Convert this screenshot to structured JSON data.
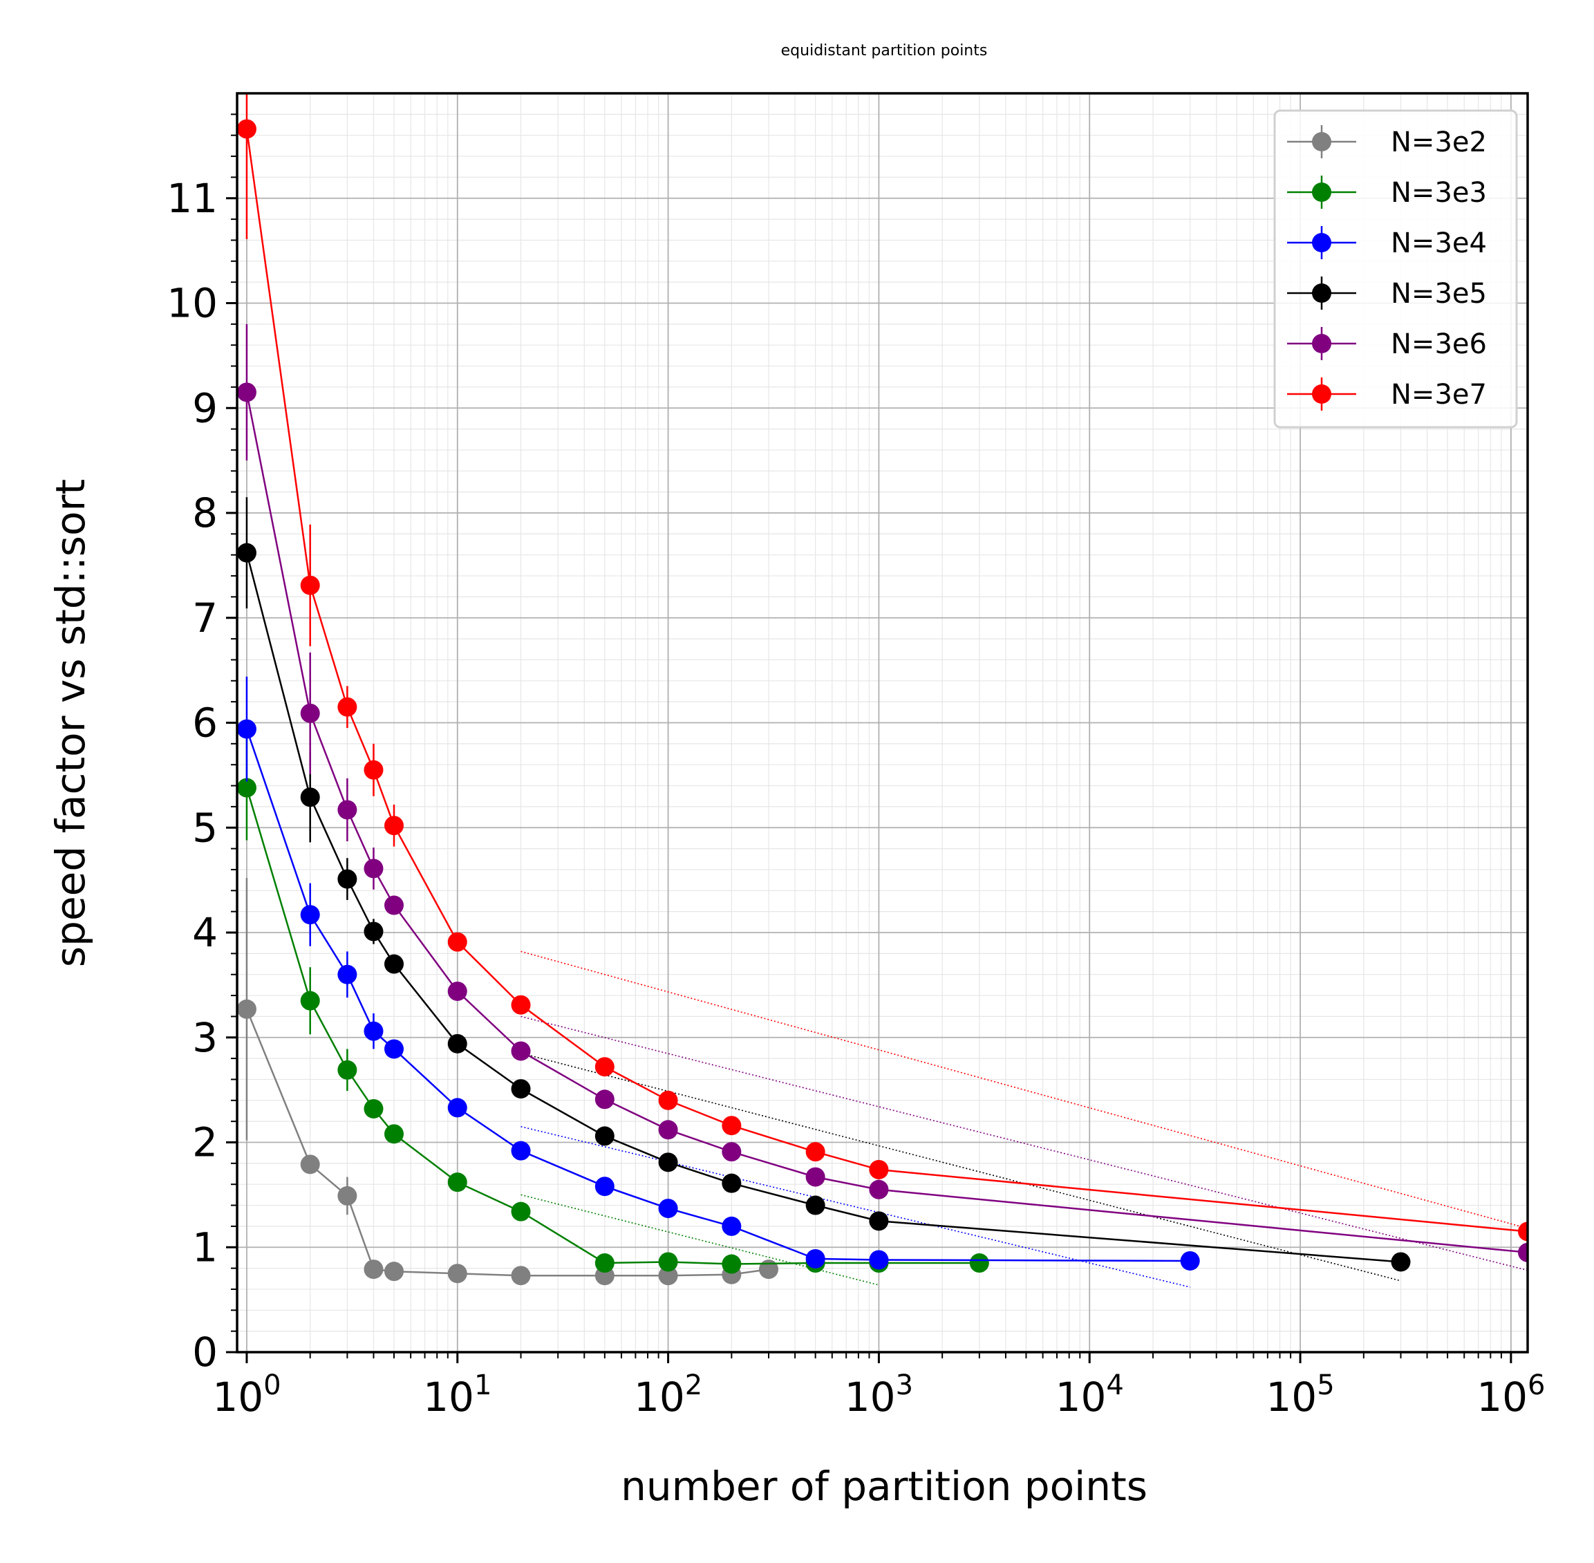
{
  "chart_data": {
    "type": "line",
    "title": "equidistant partition points",
    "xlabel": "number of partition points",
    "ylabel": "speed factor vs std::sort",
    "xscale": "log",
    "xlim": [
      0.9,
      1200000
    ],
    "ylim": [
      0,
      12
    ],
    "x_ticks": [
      1,
      10,
      100,
      1000,
      10000,
      100000,
      1000000
    ],
    "x_tick_labels": [
      {
        "base": "10",
        "exp": "0"
      },
      {
        "base": "10",
        "exp": "1"
      },
      {
        "base": "10",
        "exp": "2"
      },
      {
        "base": "10",
        "exp": "3"
      },
      {
        "base": "10",
        "exp": "4"
      },
      {
        "base": "10",
        "exp": "5"
      },
      {
        "base": "10",
        "exp": "6"
      }
    ],
    "y_ticks": [
      0,
      1,
      2,
      3,
      4,
      5,
      6,
      7,
      8,
      9,
      10,
      11
    ],
    "y_tick_labels": [
      "0",
      "1",
      "2",
      "3",
      "4",
      "5",
      "6",
      "7",
      "8",
      "9",
      "10",
      "11"
    ],
    "grid": true,
    "legend_position": "top-right",
    "series": [
      {
        "name": "N=3e2",
        "color": "#808080",
        "x": [
          1,
          2,
          3,
          4,
          5,
          10,
          20,
          50,
          100,
          200,
          300
        ],
        "y": [
          3.27,
          1.79,
          1.49,
          0.79,
          0.77,
          0.75,
          0.73,
          0.73,
          0.73,
          0.74,
          0.79
        ],
        "err": [
          1.25,
          0.05,
          0.18,
          0.03,
          0.03,
          0.02,
          0.02,
          0.02,
          0.02,
          0.02,
          0.02
        ],
        "fit": null
      },
      {
        "name": "N=3e3",
        "color": "#008000",
        "x": [
          1,
          2,
          3,
          4,
          5,
          10,
          20,
          50,
          100,
          200,
          500,
          1000,
          3000
        ],
        "y": [
          5.38,
          3.35,
          2.69,
          2.32,
          2.08,
          1.62,
          1.34,
          0.85,
          0.86,
          0.84,
          0.85,
          0.85,
          0.85
        ],
        "err": [
          0.5,
          0.32,
          0.2,
          0.05,
          0.05,
          0.05,
          0.04,
          0.02,
          0.02,
          0.02,
          0.02,
          0.02,
          0.02
        ],
        "fit": {
          "x0": 20,
          "x1": 1000,
          "y0": 1.5,
          "y1": 0.64
        }
      },
      {
        "name": "N=3e4",
        "color": "#0000ff",
        "x": [
          1,
          2,
          3,
          4,
          5,
          10,
          20,
          50,
          100,
          200,
          500,
          1000,
          30000
        ],
        "y": [
          5.94,
          4.17,
          3.6,
          3.06,
          2.89,
          2.33,
          1.92,
          1.58,
          1.37,
          1.2,
          0.89,
          0.88,
          0.87
        ],
        "err": [
          0.5,
          0.3,
          0.22,
          0.17,
          0.05,
          0.05,
          0.05,
          0.04,
          0.04,
          0.04,
          0.03,
          0.03,
          0.03
        ],
        "fit": {
          "x0": 20,
          "x1": 30000,
          "y0": 2.15,
          "y1": 0.62
        }
      },
      {
        "name": "N=3e5",
        "color": "#000000",
        "x": [
          1,
          2,
          3,
          4,
          5,
          10,
          20,
          50,
          100,
          200,
          500,
          1000,
          300000
        ],
        "y": [
          7.62,
          5.29,
          4.51,
          4.01,
          3.7,
          2.94,
          2.51,
          2.06,
          1.81,
          1.61,
          1.4,
          1.25,
          0.86
        ],
        "err": [
          0.53,
          0.43,
          0.2,
          0.12,
          0.06,
          0.06,
          0.06,
          0.05,
          0.05,
          0.04,
          0.04,
          0.04,
          0.03
        ],
        "fit": {
          "x0": 20,
          "x1": 300000,
          "y0": 2.85,
          "y1": 0.68
        }
      },
      {
        "name": "N=3e6",
        "color": "#800080",
        "x": [
          1,
          2,
          3,
          4,
          5,
          10,
          20,
          50,
          100,
          200,
          500,
          1000,
          1200000
        ],
        "y": [
          9.15,
          6.09,
          5.17,
          4.61,
          4.26,
          3.44,
          2.87,
          2.41,
          2.12,
          1.91,
          1.67,
          1.55,
          0.95
        ],
        "err": [
          0.65,
          0.58,
          0.3,
          0.2,
          0.06,
          0.06,
          0.06,
          0.05,
          0.05,
          0.05,
          0.05,
          0.04,
          0.03
        ],
        "fit": {
          "x0": 20,
          "x1": 1200000,
          "y0": 3.2,
          "y1": 0.78
        }
      },
      {
        "name": "N=3e7",
        "color": "#ff0000",
        "x": [
          1,
          2,
          3,
          4,
          5,
          10,
          20,
          50,
          100,
          200,
          500,
          1000,
          1200000
        ],
        "y": [
          11.66,
          7.31,
          6.15,
          5.55,
          5.02,
          3.91,
          3.31,
          2.72,
          2.4,
          2.16,
          1.91,
          1.74,
          1.15
        ],
        "err": [
          1.05,
          0.58,
          0.2,
          0.25,
          0.2,
          0.06,
          0.06,
          0.05,
          0.05,
          0.05,
          0.05,
          0.05,
          0.04
        ],
        "fit": {
          "x0": 20,
          "x1": 1200000,
          "y0": 3.82,
          "y1": 1.18
        }
      }
    ]
  }
}
